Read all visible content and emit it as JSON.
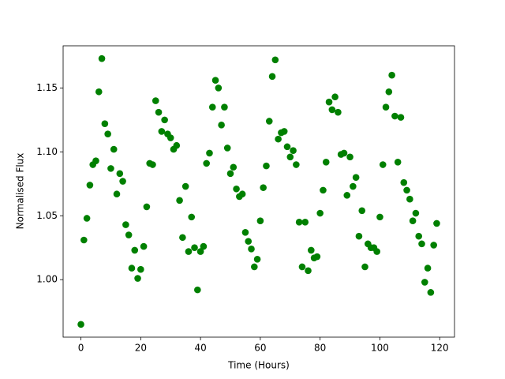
{
  "chart_data": {
    "type": "scatter",
    "xlabel": "Time (Hours)",
    "ylabel": "Normalised Flux",
    "color": "#008000",
    "x": [
      0,
      1,
      2,
      3,
      4,
      5,
      6,
      7,
      8,
      9,
      10,
      11,
      12,
      13,
      14,
      15,
      16,
      17,
      18,
      19,
      20,
      21,
      22,
      23,
      24,
      25,
      26,
      27,
      28,
      29,
      30,
      31,
      32,
      33,
      34,
      35,
      36,
      37,
      38,
      39,
      40,
      41,
      42,
      43,
      44,
      45,
      46,
      47,
      48,
      49,
      50,
      51,
      52,
      53,
      54,
      55,
      56,
      57,
      58,
      59,
      60,
      61,
      62,
      63,
      64,
      65,
      66,
      67,
      68,
      69,
      70,
      71,
      72,
      73,
      74,
      75,
      76,
      77,
      78,
      79,
      80,
      81,
      82,
      83,
      84,
      85,
      86,
      87,
      88,
      89,
      90,
      91,
      92,
      93,
      94,
      95,
      96,
      97,
      98,
      99,
      100,
      101,
      102,
      103,
      104,
      105,
      106,
      107,
      108,
      109,
      110,
      111,
      112,
      113,
      114,
      115,
      116,
      117,
      118,
      119
    ],
    "values": [
      0.965,
      1.031,
      1.048,
      1.074,
      1.09,
      1.093,
      1.147,
      1.173,
      1.122,
      1.114,
      1.087,
      1.102,
      1.067,
      1.083,
      1.077,
      1.043,
      1.035,
      1.009,
      1.023,
      1.001,
      1.008,
      1.026,
      1.057,
      1.091,
      1.09,
      1.14,
      1.131,
      1.116,
      1.125,
      1.114,
      1.111,
      1.102,
      1.105,
      1.062,
      1.033,
      1.073,
      1.022,
      1.049,
      1.025,
      0.992,
      1.022,
      1.026,
      1.091,
      1.099,
      1.135,
      1.156,
      1.15,
      1.121,
      1.135,
      1.103,
      1.083,
      1.088,
      1.071,
      1.065,
      1.067,
      1.037,
      1.03,
      1.024,
      1.01,
      1.016,
      1.046,
      1.072,
      1.089,
      1.124,
      1.159,
      1.172,
      1.11,
      1.115,
      1.116,
      1.104,
      1.096,
      1.101,
      1.09,
      1.045,
      1.01,
      1.045,
      1.007,
      1.023,
      1.017,
      1.018,
      1.052,
      1.07,
      1.092,
      1.139,
      1.133,
      1.143,
      1.131,
      1.098,
      1.099,
      1.066,
      1.096,
      1.073,
      1.08,
      1.034,
      1.054,
      1.01,
      1.028,
      1.025,
      1.025,
      1.022,
      1.049,
      1.09,
      1.135,
      1.147,
      1.16,
      1.128,
      1.092,
      1.127,
      1.076,
      1.07,
      1.063,
      1.046,
      1.052,
      1.034,
      1.028,
      0.998,
      1.009,
      0.99,
      1.027,
      1.044
    ],
    "xlim": [
      -5.95,
      124.95
    ],
    "xticks": [
      0,
      20,
      40,
      60,
      80,
      100,
      120
    ],
    "ylim": [
      0.955,
      1.183
    ],
    "yticks": [
      {
        "value": 1.0,
        "label": "1.00"
      },
      {
        "value": 1.05,
        "label": "1.05"
      },
      {
        "value": 1.1,
        "label": "1.10"
      },
      {
        "value": 1.15,
        "label": "1.15"
      }
    ],
    "grid": false
  }
}
